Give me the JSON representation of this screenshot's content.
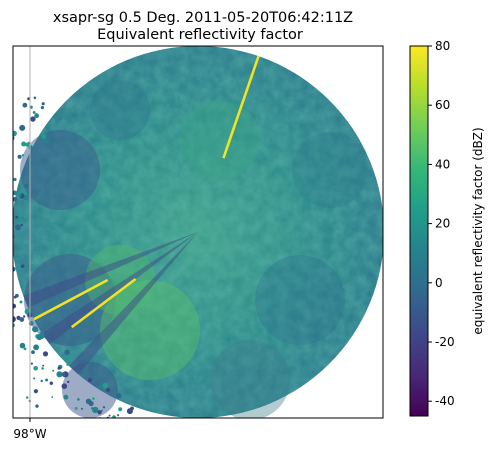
{
  "chart_data": {
    "type": "heatmap",
    "title_line1": "xsapr-sg 0.5 Deg. 2011-05-20T06:42:11Z",
    "title_line2": "Equivalent reflectivity factor",
    "x_tick_labels": [
      "98°W"
    ],
    "colorbar": {
      "label": "equivalent reflectivity factor (dBZ)",
      "range": [
        -45,
        80
      ],
      "ticks": [
        80,
        60,
        40,
        20,
        0,
        -20,
        -40
      ],
      "colormap": "viridis"
    },
    "sweep": {
      "elevation_deg": 0.5,
      "beam_blockage_azimuths_deg": [
        248,
        235,
        222
      ],
      "spike_azimuths_deg": [
        19,
        242,
        233
      ]
    }
  },
  "colors": {
    "viridis_stops": [
      "#440154",
      "#482878",
      "#3e4989",
      "#31688e",
      "#26828e",
      "#1f9e89",
      "#35b779",
      "#6ece58",
      "#b5de2b",
      "#fde725"
    ],
    "spike": "#f2e125",
    "axes": "#000000",
    "gridline": "#b0b0b0"
  }
}
